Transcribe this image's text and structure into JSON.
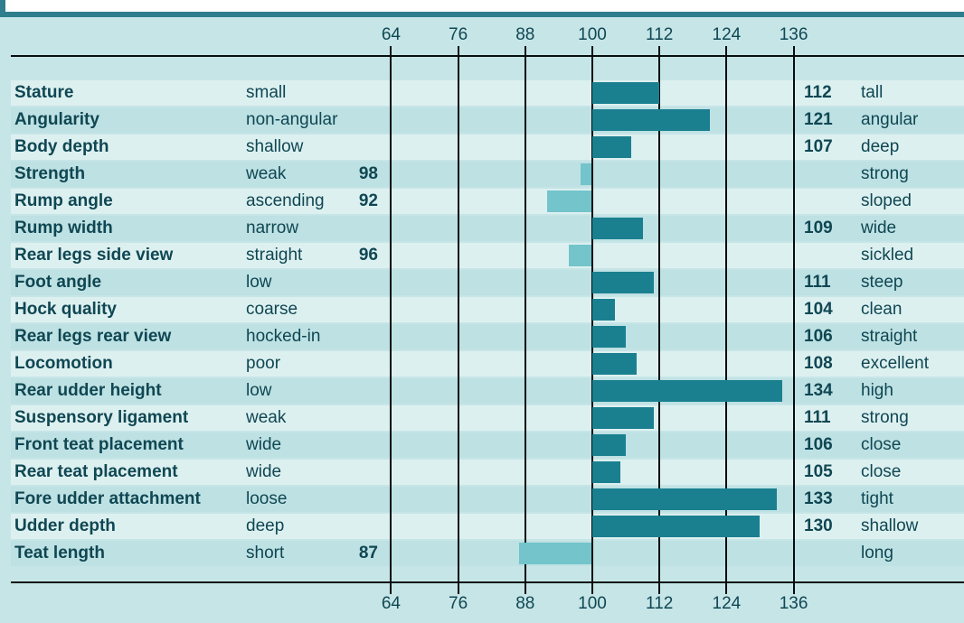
{
  "chart_data": {
    "type": "bar",
    "orientation": "horizontal-diverging",
    "baseline": 100,
    "axis_ticks": [
      64,
      76,
      88,
      100,
      112,
      124,
      136
    ],
    "xlim": [
      64,
      136
    ],
    "ticks_shown": "top and bottom",
    "grid": "vertical gridlines at every tick",
    "rows": [
      {
        "trait": "Stature",
        "low": "small",
        "high": "tall",
        "value": 112
      },
      {
        "trait": "Angularity",
        "low": "non-angular",
        "high": "angular",
        "value": 121
      },
      {
        "trait": "Body depth",
        "low": "shallow",
        "high": "deep",
        "value": 107
      },
      {
        "trait": "Strength",
        "low": "weak",
        "high": "strong",
        "value": 98
      },
      {
        "trait": "Rump angle",
        "low": "ascending",
        "high": "sloped",
        "value": 92
      },
      {
        "trait": "Rump width",
        "low": "narrow",
        "high": "wide",
        "value": 109
      },
      {
        "trait": "Rear legs side view",
        "low": "straight",
        "high": "sickled",
        "value": 96
      },
      {
        "trait": "Foot angle",
        "low": "low",
        "high": "steep",
        "value": 111
      },
      {
        "trait": "Hock quality",
        "low": "coarse",
        "high": "clean",
        "value": 104
      },
      {
        "trait": "Rear legs rear view",
        "low": "hocked-in",
        "high": "straight",
        "value": 106
      },
      {
        "trait": "Locomotion",
        "low": "poor",
        "high": "excellent",
        "value": 108
      },
      {
        "trait": "Rear udder height",
        "low": "low",
        "high": "high",
        "value": 134
      },
      {
        "trait": "Suspensory ligament",
        "low": "weak",
        "high": "strong",
        "value": 111
      },
      {
        "trait": "Front teat placement",
        "low": "wide",
        "high": "close",
        "value": 106
      },
      {
        "trait": "Rear teat placement",
        "low": "wide",
        "high": "close",
        "value": 105
      },
      {
        "trait": "Fore udder attachment",
        "low": "loose",
        "high": "tight",
        "value": 133
      },
      {
        "trait": "Udder depth",
        "low": "deep",
        "high": "shallow",
        "value": 130
      },
      {
        "trait": "Teat length",
        "low": "short",
        "high": "long",
        "value": 87
      }
    ]
  },
  "colors": {
    "background": "#c6e5e7",
    "stripe_light": "#ddf0f0",
    "stripe_dark": "#bee1e3",
    "bar_above_100": "#1a8090",
    "bar_below_100": "#73c4cb",
    "accent_bar": "#2e7e8d",
    "text": "#0f4753",
    "axis_line": "#060d0e"
  }
}
